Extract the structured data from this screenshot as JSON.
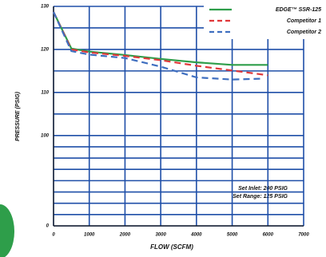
{
  "chart_data": {
    "type": "line",
    "y_label": "PRESSURE (PSIG)",
    "x_label": "FLOW (SCFM)",
    "annotations": [
      "Set Inlet: 200 PSIG",
      "Set Range: 125 PSIG"
    ],
    "xlim": [
      0,
      7000
    ],
    "xticks": [
      0,
      1000,
      2000,
      3000,
      4000,
      5000,
      6000,
      7000
    ],
    "ylim": [
      0,
      130
    ],
    "yticks": [
      0,
      100,
      110,
      120,
      130
    ],
    "grid": true,
    "legend": "top-right",
    "series": [
      {
        "name": "EDGE™ SSR-125",
        "color": "#2e9e4a",
        "dash": false,
        "x": [
          0,
          500,
          1000,
          2000,
          3000,
          4000,
          5000,
          6000
        ],
        "values": [
          128.7,
          120.2,
          119.5,
          118.7,
          117.8,
          117,
          116.4,
          116.4
        ]
      },
      {
        "name": "Competitor 1",
        "color": "#e0383a",
        "dash": true,
        "x": [
          0,
          500,
          1000,
          2000,
          3000,
          4000,
          5000,
          6000
        ],
        "values": [
          128.7,
          120,
          119.3,
          118.5,
          117.5,
          116.2,
          115.1,
          114
        ]
      },
      {
        "name": "Competitor 2",
        "color": "#3f6fc0",
        "dash": true,
        "x": [
          0,
          500,
          1000,
          2000,
          3000,
          4000,
          5000,
          5800
        ],
        "values": [
          128.7,
          119.6,
          118.8,
          118,
          116,
          113.5,
          113,
          113.2
        ]
      }
    ]
  }
}
